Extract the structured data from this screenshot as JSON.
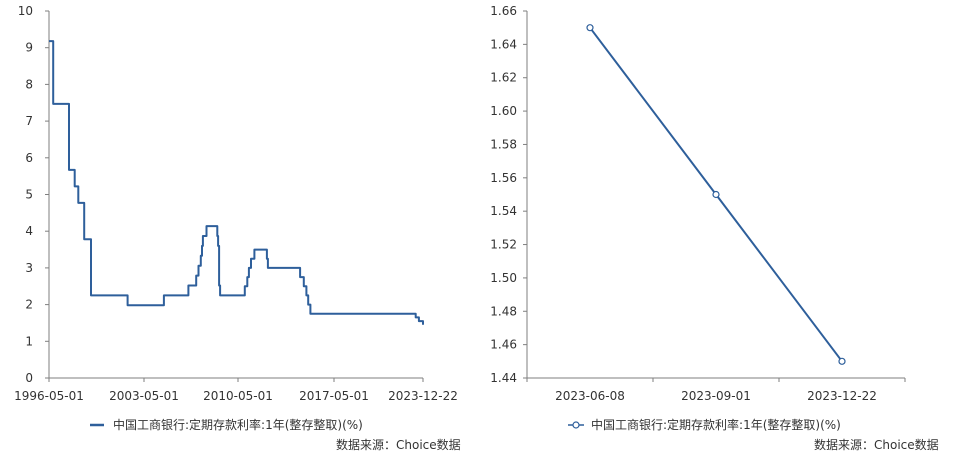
{
  "source_note": "数据来源：Choice数据",
  "colors": {
    "line": "#2e5f9b",
    "axis": "#7f7f7f",
    "text": "#333333"
  },
  "chart_data": [
    {
      "type": "line",
      "series": [
        {
          "name": "中国工商银行:定期存款利率:1年(整存整取)(%)",
          "marker": "none",
          "x": [
            "1996-05-01",
            "1996-08-23",
            "1997-10-23",
            "1998-03-25",
            "1998-07-01",
            "1998-12-07",
            "1999-06-10",
            "2002-02-21",
            "2004-10-29",
            "2006-08-19",
            "2007-03-18",
            "2007-05-19",
            "2007-07-21",
            "2007-08-22",
            "2007-09-15",
            "2007-12-21",
            "2008-10-09",
            "2008-10-30",
            "2008-11-27",
            "2008-12-23",
            "2010-10-20",
            "2010-12-26",
            "2011-02-09",
            "2011-04-06",
            "2011-07-07",
            "2012-06-08",
            "2012-07-06",
            "2014-11-22",
            "2015-03-01",
            "2015-05-11",
            "2015-06-28",
            "2015-08-26",
            "2015-10-24",
            "2023-06-08",
            "2023-09-01",
            "2023-12-22"
          ],
          "values": [
            9.18,
            7.47,
            5.67,
            5.22,
            4.77,
            3.78,
            2.25,
            1.98,
            2.25,
            2.52,
            2.79,
            3.06,
            3.33,
            3.6,
            3.87,
            4.14,
            3.87,
            3.6,
            2.52,
            2.25,
            2.5,
            2.75,
            3.0,
            3.25,
            3.5,
            3.25,
            3.0,
            2.75,
            2.5,
            2.25,
            2.0,
            1.75,
            1.75,
            1.65,
            1.55,
            1.45
          ]
        }
      ],
      "x_tick_labels": [
        "1996-05-01",
        "2003-05-01",
        "2010-05-01",
        "2017-05-01",
        "2023-12-22"
      ],
      "ylim": [
        0,
        10
      ],
      "y_ticks": [
        0,
        1,
        2,
        3,
        4,
        5,
        6,
        7,
        8,
        9,
        10
      ],
      "grid": false,
      "legend": "bottom"
    },
    {
      "type": "line",
      "series": [
        {
          "name": "中国工商银行:定期存款利率:1年(整存整取)(%)",
          "marker": "circle",
          "x": [
            "2023-06-08",
            "2023-09-01",
            "2023-12-22"
          ],
          "values": [
            1.65,
            1.55,
            1.45
          ]
        }
      ],
      "categories": [
        "2023-06-08",
        "2023-09-01",
        "2023-12-22"
      ],
      "ylim": [
        1.44,
        1.66
      ],
      "y_ticks": [
        "1.44",
        "1.46",
        "1.48",
        "1.50",
        "1.52",
        "1.54",
        "1.56",
        "1.58",
        "1.60",
        "1.62",
        "1.64",
        "1.66"
      ],
      "grid": false,
      "legend": "bottom"
    }
  ]
}
